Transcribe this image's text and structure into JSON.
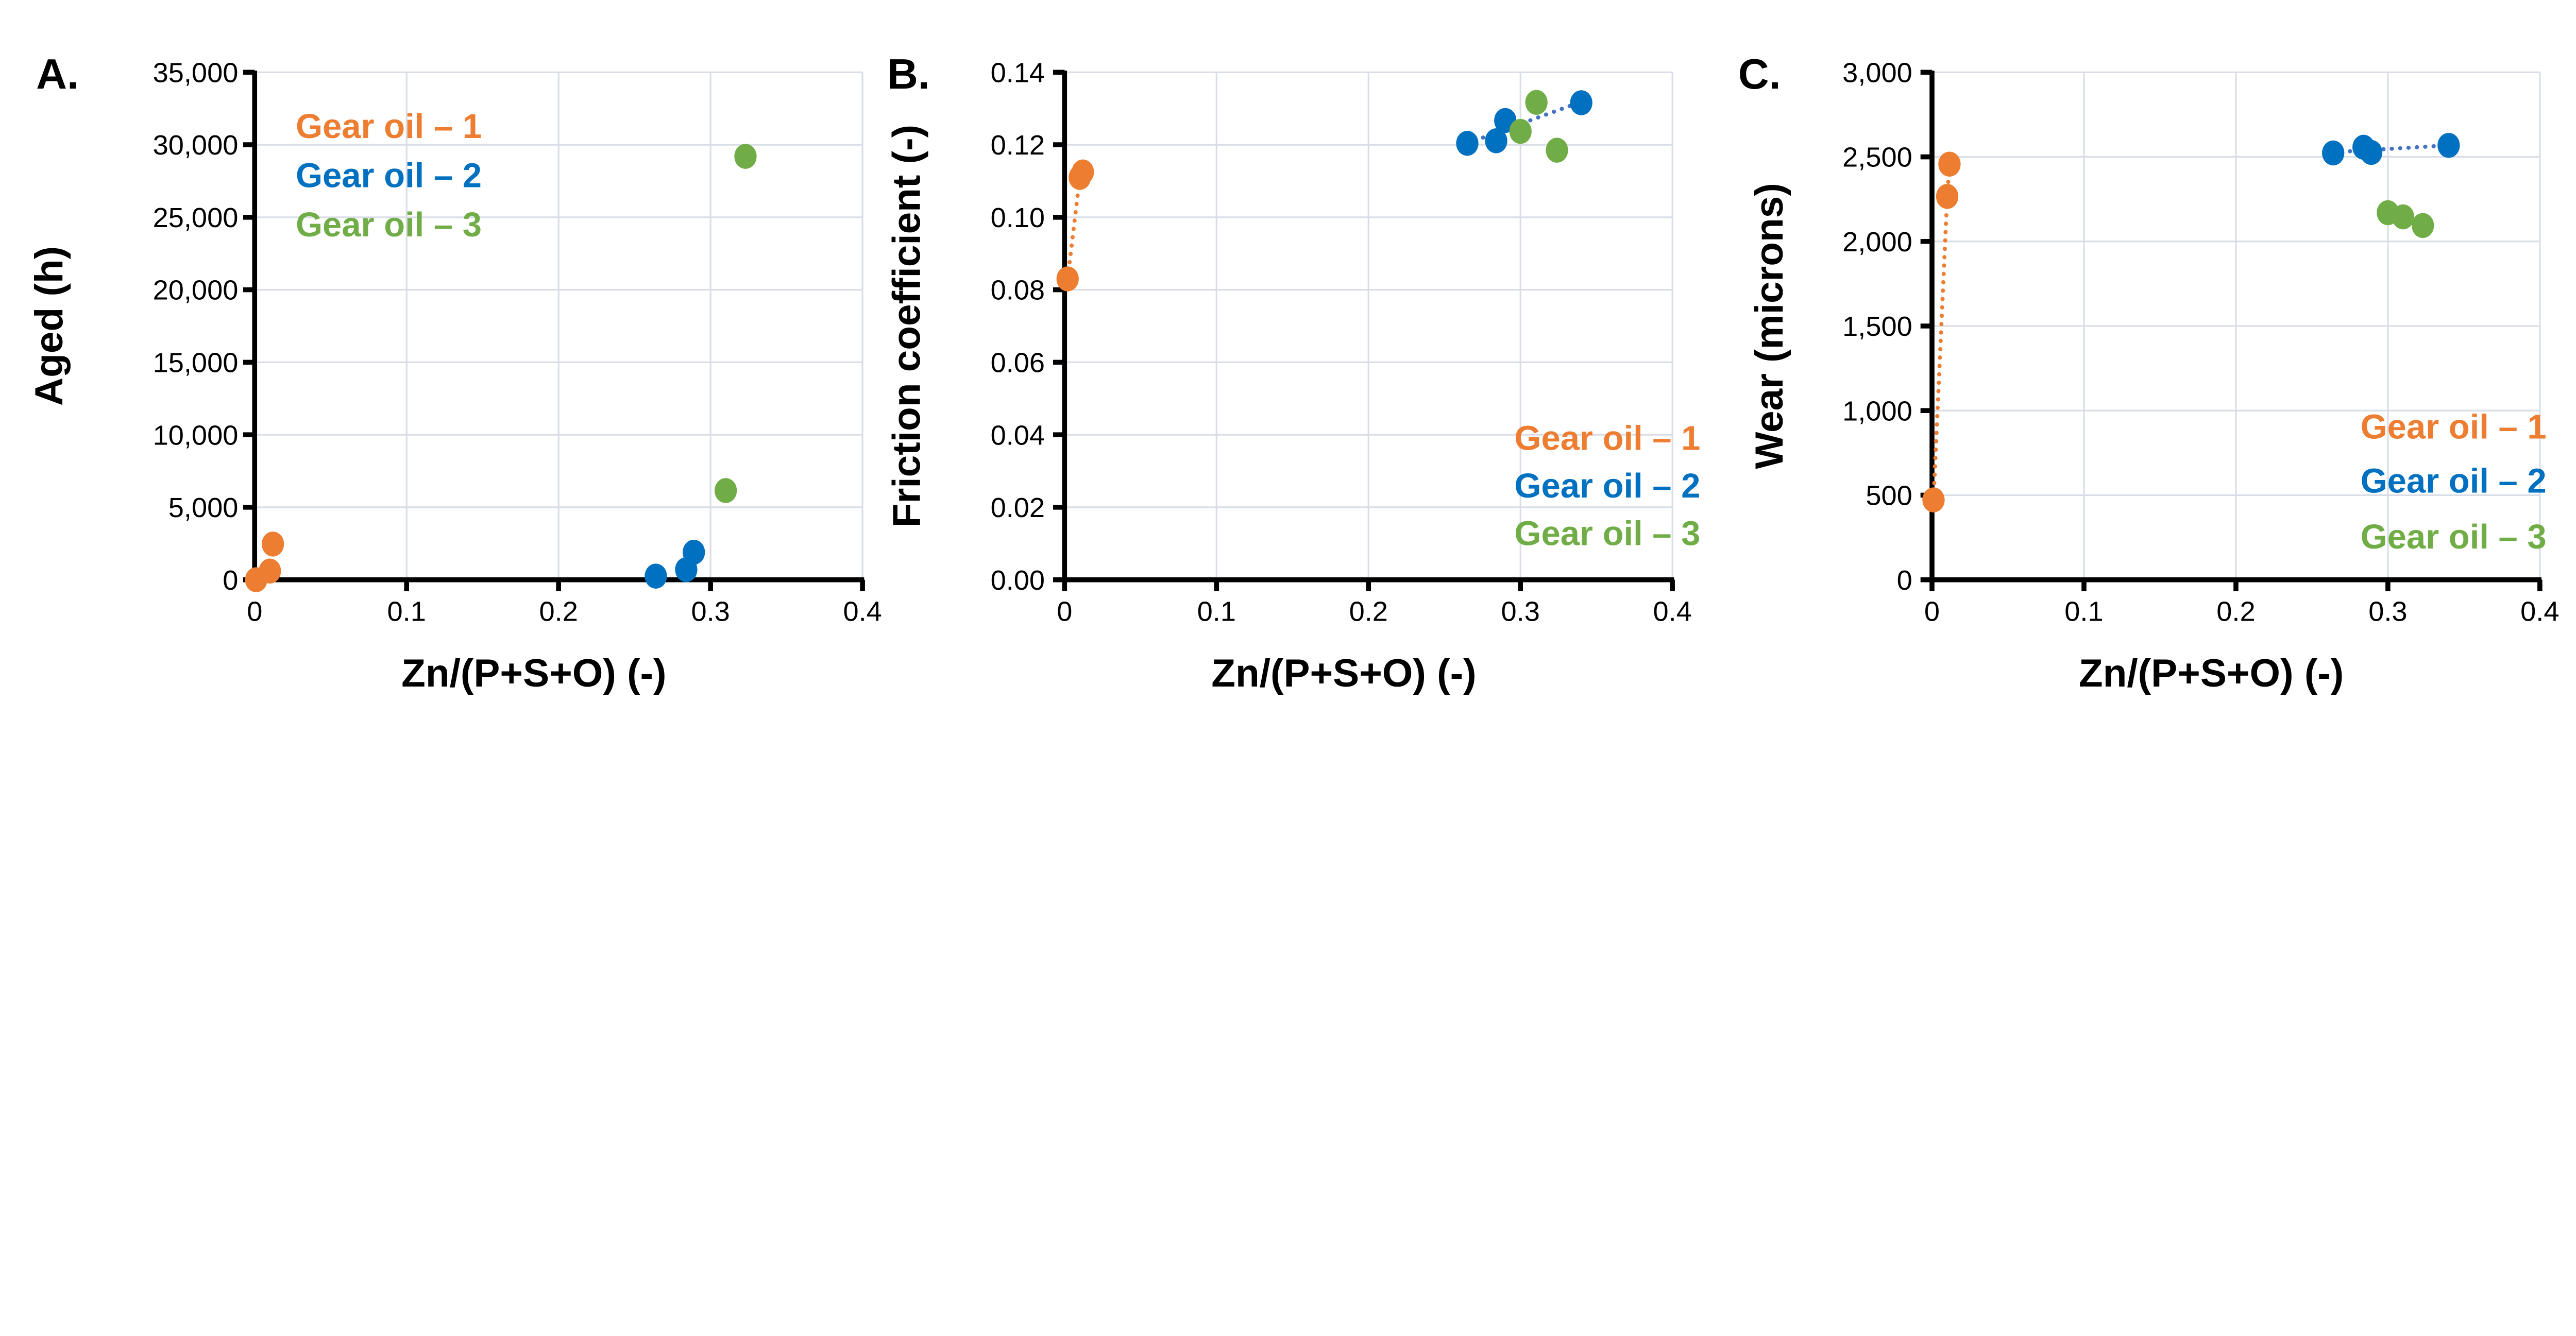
{
  "colors": {
    "gear_oil_1": "#ED7D31",
    "gear_oil_2": "#0070C0",
    "gear_oil_3": "#70AD47",
    "trend_2": "#4472C4",
    "grid": "#D9DDE6"
  },
  "chart_data": [
    {
      "type": "scatter",
      "panel_label": "A.",
      "xlabel": "Zn/(P+S+O) (-)",
      "ylabel": "Aged (h)",
      "xlim": [
        0,
        0.4
      ],
      "ylim": [
        0,
        35000
      ],
      "x_ticks": [
        "0",
        "0.1",
        "0.2",
        "0.3",
        "0.4"
      ],
      "y_ticks": [
        "0",
        "5,000",
        "10,000",
        "15,000",
        "20,000",
        "25,000",
        "30,000",
        "35,000"
      ],
      "grid": true,
      "legend_position": "top-left",
      "series": [
        {
          "name": "Gear oil – 1",
          "color": "#ED7D31",
          "line": "dotted-connect",
          "x": [
            0.001,
            0.01,
            0.012
          ],
          "y": [
            0,
            600,
            2460
          ]
        },
        {
          "name": "Gear oil – 2",
          "color": "#0070C0",
          "line": "none",
          "x": [
            0.264,
            0.284,
            0.289
          ],
          "y": [
            250,
            700,
            1900
          ]
        },
        {
          "name": "Gear oil – 3",
          "color": "#70AD47",
          "line": "none",
          "x": [
            0.31,
            0.323
          ],
          "y": [
            6150,
            29200
          ]
        }
      ]
    },
    {
      "type": "scatter",
      "panel_label": "B.",
      "xlabel": "Zn/(P+S+O) (-)",
      "ylabel": "Friction coefficient (-)",
      "xlim": [
        0,
        0.4
      ],
      "ylim": [
        0,
        0.14
      ],
      "x_ticks": [
        "0",
        "0.1",
        "0.2",
        "0.3",
        "0.4"
      ],
      "y_ticks": [
        "0.00",
        "0.02",
        "0.04",
        "0.06",
        "0.08",
        "0.10",
        "0.12",
        "0.14"
      ],
      "grid": true,
      "legend_position": "bottom-right",
      "series": [
        {
          "name": "Gear oil – 1",
          "color": "#ED7D31",
          "line": "dotted-connect",
          "x": [
            0.002,
            0.01,
            0.012
          ],
          "y": [
            0.083,
            0.111,
            0.1125
          ]
        },
        {
          "name": "Gear oil – 2",
          "color": "#0070C0",
          "line": "dotted-trend",
          "x": [
            0.265,
            0.284,
            0.29,
            0.34
          ],
          "y": [
            0.1204,
            0.1211,
            0.1267,
            0.1316
          ]
        },
        {
          "name": "Gear oil – 3",
          "color": "#70AD47",
          "line": "none",
          "x": [
            0.3,
            0.3105,
            0.324
          ],
          "y": [
            0.1237,
            0.1317,
            0.1185
          ]
        }
      ]
    },
    {
      "type": "scatter",
      "panel_label": "C.",
      "xlabel": "Zn/(P+S+O) (-)",
      "ylabel": "Wear (microns)",
      "xlim": [
        0,
        0.4
      ],
      "ylim": [
        0,
        3000
      ],
      "x_ticks": [
        "0",
        "0.1",
        "0.2",
        "0.3",
        "0.4"
      ],
      "y_ticks": [
        "0",
        "500",
        "1,000",
        "1,500",
        "2,000",
        "2,500",
        "3,000"
      ],
      "grid": true,
      "legend_position": "bottom-right",
      "series": [
        {
          "name": "Gear oil – 1",
          "color": "#ED7D31",
          "line": "dotted-connect",
          "x": [
            0.001,
            0.01,
            0.0115
          ],
          "y": [
            472,
            2266,
            2457
          ]
        },
        {
          "name": "Gear oil – 2",
          "color": "#0070C0",
          "line": "dotted-trend",
          "x": [
            0.264,
            0.284,
            0.289,
            0.34
          ],
          "y": [
            2523,
            2557,
            2526,
            2568
          ]
        },
        {
          "name": "Gear oil – 3",
          "color": "#70AD47",
          "line": "none",
          "x": [
            0.3,
            0.31,
            0.323
          ],
          "y": [
            2170,
            2145,
            2094
          ]
        }
      ]
    }
  ]
}
